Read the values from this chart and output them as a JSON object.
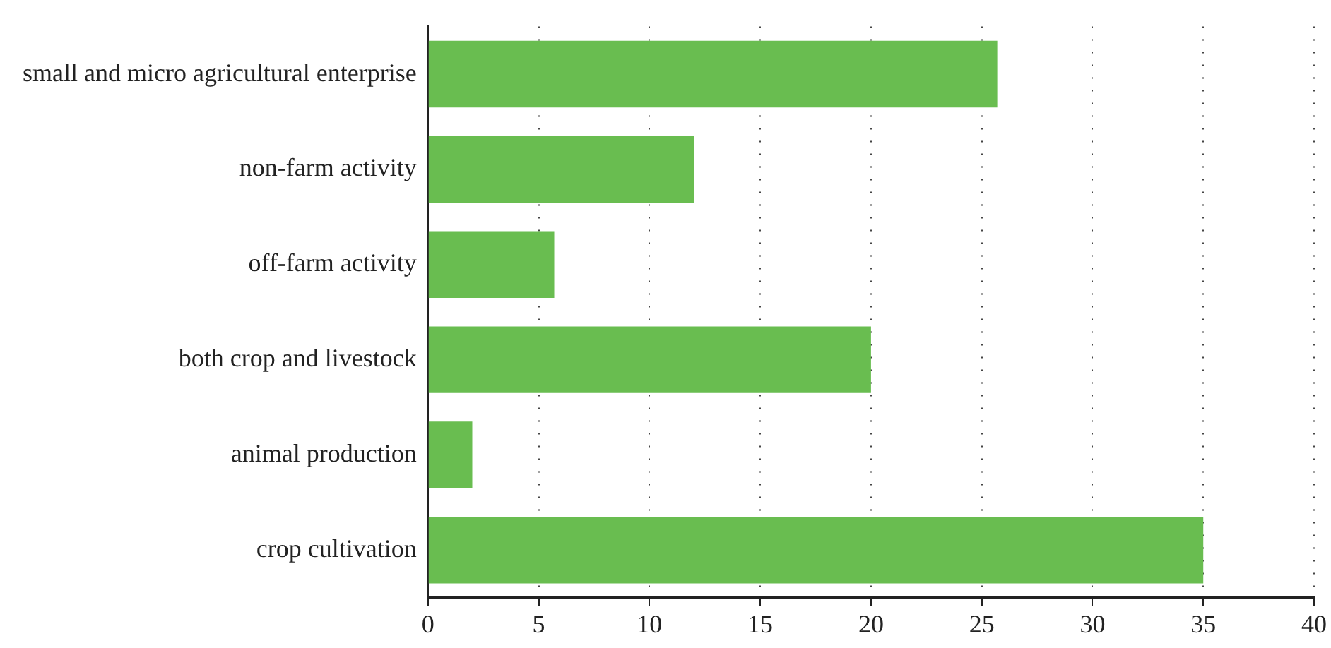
{
  "chart_data": {
    "type": "bar",
    "orientation": "horizontal",
    "categories": [
      "small and micro agricultural enterprise",
      "non-farm activity",
      "off-farm activity",
      "both crop and livestock",
      "animal production",
      "crop cultivation"
    ],
    "values": [
      25.7,
      12,
      5.7,
      20,
      2,
      35
    ],
    "color": "#69bd50",
    "xlim": [
      0,
      40
    ],
    "xticks": [
      0,
      5,
      10,
      15,
      20,
      25,
      30,
      35,
      40
    ],
    "grid": "x",
    "legend": false
  }
}
